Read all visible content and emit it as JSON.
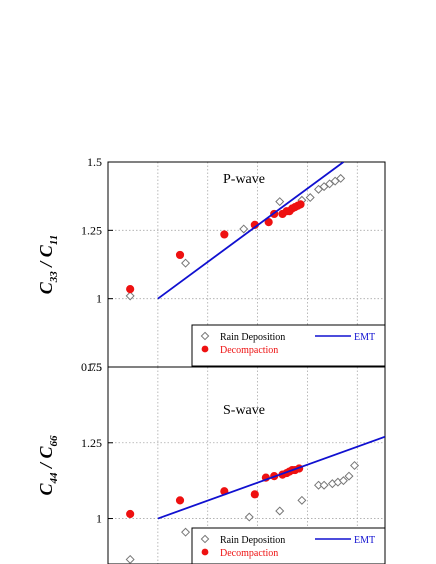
{
  "colors": {
    "emt": "#1010d0",
    "rain": "#777777",
    "decomp": "#ee1111",
    "grid": "#aaaaaa"
  },
  "chart_data": [
    {
      "type": "scatter",
      "title": "P-wave",
      "ylabel_main": "C",
      "ylabel_main_sub": "33",
      "ylabel_slash": "/",
      "ylabel_den": "C",
      "ylabel_den_sub": "11",
      "ylim": [
        0.75,
        1.5
      ],
      "y_ticks": [
        "0.75",
        "1",
        "1.25",
        "1.5"
      ],
      "xlim": [
        0,
        1
      ],
      "x_grid": [
        0.18,
        0.36,
        0.54,
        0.72,
        0.9
      ],
      "grid": true,
      "legend": {
        "position": "bottom-right",
        "items": [
          {
            "label": "Rain Deposition",
            "marker": "diamond"
          },
          {
            "label": "Decompaction",
            "marker": "circle"
          },
          {
            "label": "EMT",
            "marker": "line"
          }
        ]
      },
      "series": [
        {
          "name": "Rain Deposition",
          "marker": "diamond",
          "x": [
            0.08,
            0.28,
            0.49,
            0.62,
            0.7,
            0.73,
            0.76,
            0.78,
            0.8,
            0.82,
            0.84
          ],
          "y": [
            1.01,
            1.13,
            1.255,
            1.355,
            1.36,
            1.37,
            1.4,
            1.41,
            1.42,
            1.43,
            1.44
          ]
        },
        {
          "name": "Decompaction",
          "marker": "circle",
          "x": [
            0.08,
            0.26,
            0.42,
            0.53,
            0.58,
            0.6,
            0.63,
            0.645,
            0.655,
            0.665,
            0.675,
            0.685,
            0.695
          ],
          "y": [
            1.035,
            1.16,
            1.235,
            1.27,
            1.28,
            1.31,
            1.31,
            1.32,
            1.32,
            1.33,
            1.335,
            1.34,
            1.345
          ]
        },
        {
          "name": "EMT",
          "marker": "line",
          "x": [
            0.18,
            0.85
          ],
          "y": [
            1.0,
            1.5
          ]
        }
      ]
    },
    {
      "type": "scatter",
      "title": "S-wave",
      "ylabel_main": "C",
      "ylabel_main_sub": "44",
      "ylabel_slash": "/",
      "ylabel_den": "C",
      "ylabel_den_sub": "66",
      "ylim": [
        0.85,
        1.5
      ],
      "y_ticks": [
        "1",
        "1.25",
        "1.5"
      ],
      "xlim": [
        0,
        1
      ],
      "x_grid": [
        0.18,
        0.36,
        0.54,
        0.72,
        0.9
      ],
      "grid": true,
      "legend": {
        "position": "bottom-right",
        "items": [
          {
            "label": "Rain Deposition",
            "marker": "diamond"
          },
          {
            "label": "Decompaction",
            "marker": "circle"
          },
          {
            "label": "EMT",
            "marker": "line"
          }
        ]
      },
      "series": [
        {
          "name": "Rain Deposition",
          "marker": "diamond",
          "x": [
            0.08,
            0.28,
            0.51,
            0.62,
            0.7,
            0.76,
            0.78,
            0.81,
            0.83,
            0.85,
            0.87,
            0.89
          ],
          "y": [
            0.865,
            0.955,
            1.005,
            1.025,
            1.06,
            1.11,
            1.11,
            1.115,
            1.12,
            1.125,
            1.14,
            1.175
          ]
        },
        {
          "name": "Decompaction",
          "marker": "circle",
          "x": [
            0.08,
            0.26,
            0.42,
            0.53,
            0.57,
            0.6,
            0.63,
            0.645,
            0.655,
            0.665,
            0.675,
            0.69
          ],
          "y": [
            1.015,
            1.06,
            1.09,
            1.08,
            1.135,
            1.14,
            1.145,
            1.15,
            1.155,
            1.16,
            1.16,
            1.165
          ]
        },
        {
          "name": "EMT",
          "marker": "line",
          "x": [
            0.18,
            1.0
          ],
          "y": [
            1.0,
            1.27
          ]
        }
      ]
    }
  ]
}
